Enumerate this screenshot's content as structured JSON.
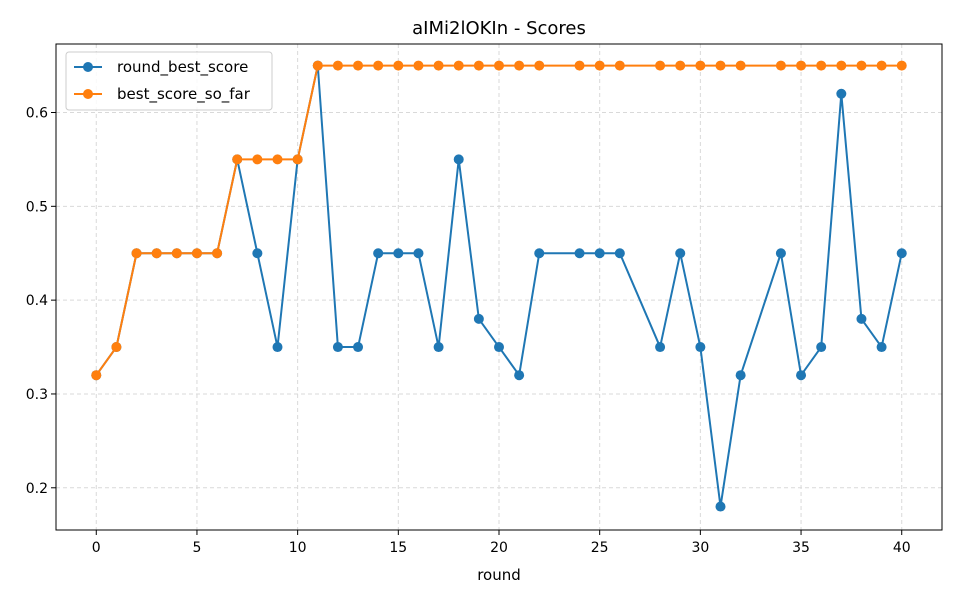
{
  "chart_data": {
    "type": "line",
    "title": "aIMi2lOKIn - Scores",
    "xlabel": "round",
    "ylabel": "",
    "xlim": [
      -2,
      42
    ],
    "ylim": [
      0.155,
      0.673
    ],
    "xticks": [
      0,
      5,
      10,
      15,
      20,
      25,
      30,
      35,
      40
    ],
    "yticks": [
      0.2,
      0.3,
      0.4,
      0.5,
      0.6
    ],
    "grid": true,
    "legend_position": "top-left",
    "series": [
      {
        "name": "round_best_score",
        "color": "#1f77b4",
        "x": [
          0,
          1,
          2,
          3,
          4,
          5,
          6,
          7,
          8,
          9,
          10,
          11,
          12,
          13,
          14,
          15,
          16,
          17,
          18,
          19,
          20,
          21,
          22,
          24,
          25,
          26,
          28,
          29,
          30,
          31,
          32,
          34,
          35,
          36,
          37,
          38,
          39,
          40
        ],
        "values": [
          0.32,
          0.35,
          0.45,
          0.45,
          0.45,
          0.45,
          0.45,
          0.55,
          0.45,
          0.35,
          0.55,
          0.65,
          0.35,
          0.35,
          0.45,
          0.45,
          0.45,
          0.35,
          0.55,
          0.38,
          0.35,
          0.32,
          0.45,
          0.45,
          0.45,
          0.45,
          0.35,
          0.45,
          0.35,
          0.18,
          0.32,
          0.45,
          0.32,
          0.35,
          0.62,
          0.38,
          0.35,
          0.45
        ]
      },
      {
        "name": "best_score_so_far",
        "color": "#ff7f0e",
        "x": [
          0,
          1,
          2,
          3,
          4,
          5,
          6,
          7,
          8,
          9,
          10,
          11,
          12,
          13,
          14,
          15,
          16,
          17,
          18,
          19,
          20,
          21,
          22,
          24,
          25,
          26,
          28,
          29,
          30,
          31,
          32,
          34,
          35,
          36,
          37,
          38,
          39,
          40
        ],
        "values": [
          0.32,
          0.35,
          0.45,
          0.45,
          0.45,
          0.45,
          0.45,
          0.55,
          0.55,
          0.55,
          0.55,
          0.65,
          0.65,
          0.65,
          0.65,
          0.65,
          0.65,
          0.65,
          0.65,
          0.65,
          0.65,
          0.65,
          0.65,
          0.65,
          0.65,
          0.65,
          0.65,
          0.65,
          0.65,
          0.65,
          0.65,
          0.65,
          0.65,
          0.65,
          0.65,
          0.65,
          0.65,
          0.65
        ]
      }
    ]
  }
}
